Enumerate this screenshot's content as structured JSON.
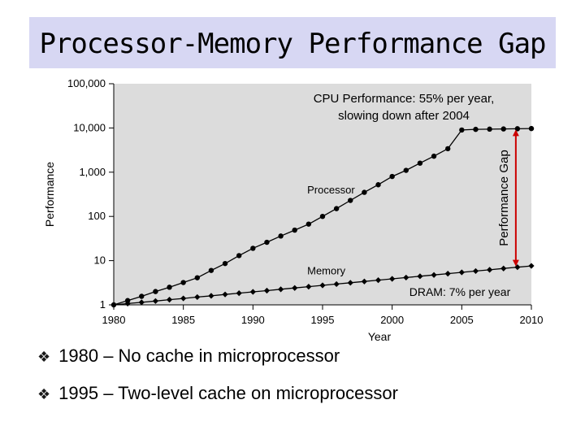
{
  "slide": {
    "title": "Processor-Memory Performance Gap",
    "colors": {
      "title_bg": "#d7d7f3",
      "plot_bg": "#dcdcdc",
      "gap_arrow": "#cc0000"
    }
  },
  "bullets": [
    {
      "text": "1980 – No cache in microprocessor"
    },
    {
      "text": "1995 – Two-level cache on microprocessor"
    }
  ],
  "chart_data": {
    "type": "line",
    "xlabel": "Year",
    "ylabel": "Performance",
    "xlim": [
      1980,
      2010
    ],
    "ylim": [
      1,
      100000
    ],
    "yscale": "log",
    "grid": false,
    "x_ticks": [
      1980,
      1985,
      1990,
      1995,
      2000,
      2005,
      2010
    ],
    "y_ticks": [
      {
        "value": 1,
        "label": "1"
      },
      {
        "value": 10,
        "label": "10"
      },
      {
        "value": 100,
        "label": "100"
      },
      {
        "value": 1000,
        "label": "1,000"
      },
      {
        "value": 10000,
        "label": "10,000"
      },
      {
        "value": 100000,
        "label": "100,000"
      }
    ],
    "series": [
      {
        "name": "Processor",
        "marker": "circle",
        "x": [
          1980,
          1981,
          1982,
          1983,
          1984,
          1985,
          1986,
          1987,
          1988,
          1989,
          1990,
          1991,
          1992,
          1993,
          1994,
          1995,
          1996,
          1997,
          1998,
          1999,
          2000,
          2001,
          2002,
          2003,
          2004,
          2005,
          2006,
          2007,
          2008,
          2009,
          2010
        ],
        "values": [
          1,
          1.25,
          1.56,
          2,
          2.5,
          3.2,
          4.1,
          6,
          8.6,
          13,
          19,
          26,
          36,
          49,
          67,
          100,
          150,
          230,
          350,
          520,
          800,
          1100,
          1600,
          2300,
          3400,
          9000,
          9300,
          9400,
          9500,
          9600,
          9700
        ]
      },
      {
        "name": "Memory",
        "marker": "diamond",
        "x": [
          1980,
          1981,
          1982,
          1983,
          1984,
          1985,
          1986,
          1987,
          1988,
          1989,
          1990,
          1991,
          1992,
          1993,
          1994,
          1995,
          1996,
          1997,
          1998,
          1999,
          2000,
          2001,
          2002,
          2003,
          2004,
          2005,
          2006,
          2007,
          2008,
          2009,
          2010
        ],
        "values": [
          1,
          1.07,
          1.14,
          1.22,
          1.31,
          1.4,
          1.5,
          1.6,
          1.72,
          1.84,
          1.97,
          2.1,
          2.25,
          2.41,
          2.58,
          2.76,
          2.95,
          3.16,
          3.38,
          3.62,
          3.87,
          4.14,
          4.43,
          4.74,
          5.07,
          5.43,
          5.81,
          6.21,
          6.65,
          7.11,
          7.61
        ]
      }
    ],
    "annotations": {
      "series_labels": [
        {
          "text": "Processor",
          "x": 1996,
          "y": 300
        },
        {
          "text": "Memory",
          "x": 1996,
          "y": 4.5
        }
      ],
      "cpu_note": [
        "CPU Performance: 55% per year,",
        "slowing down after 2004"
      ],
      "dram_note": "DRAM: 7% per year",
      "gap_label": "Performance Gap",
      "gap_year": 2009
    }
  }
}
